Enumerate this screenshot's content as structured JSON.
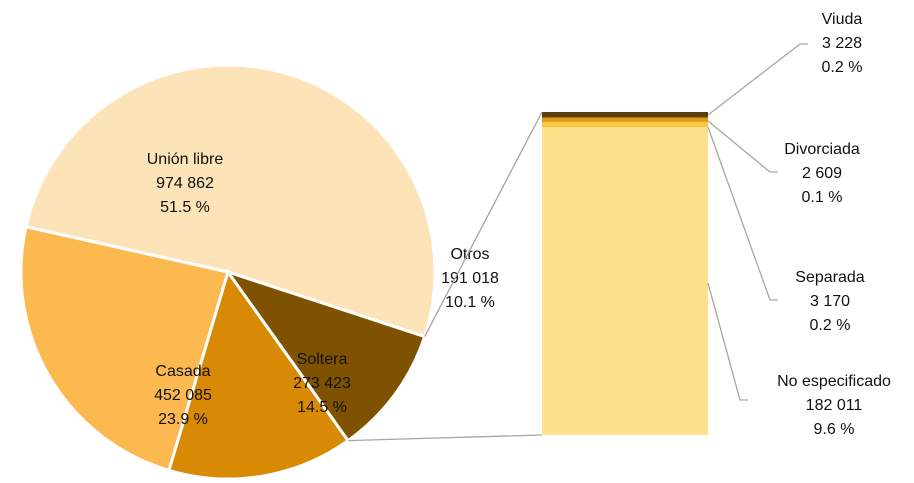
{
  "chart_data": {
    "type": "pie",
    "categories": [
      "Unión libre",
      "Casada",
      "Soltera",
      "Otros"
    ],
    "values": [
      974862,
      452085,
      273423,
      191018
    ],
    "value_labels": [
      "974 862",
      "452 085",
      "273 423",
      "191 018"
    ],
    "percents": [
      51.5,
      23.9,
      14.5,
      10.1
    ],
    "percent_labels": [
      "51.5 %",
      "23.9 %",
      "14.5 %",
      "10.1 %"
    ],
    "colors": [
      "#fde3b8",
      "#fbb950",
      "#d98a05",
      "#7f5200"
    ],
    "breakdown": {
      "type": "bar",
      "categories": [
        "No especificado",
        "Separada",
        "Divorciada",
        "Viuda"
      ],
      "values": [
        182011,
        3170,
        2609,
        3228
      ],
      "value_labels": [
        "182 011",
        "3 170",
        "2 609",
        "3 228"
      ],
      "percents": [
        9.6,
        0.2,
        0.1,
        0.2
      ],
      "percent_labels": [
        "9.6 %",
        "0.2 %",
        "0.1 %",
        "0.2 %"
      ],
      "colors": [
        "#fde08a",
        "#fcc443",
        "#dd9b12",
        "#5a3d08"
      ]
    }
  }
}
